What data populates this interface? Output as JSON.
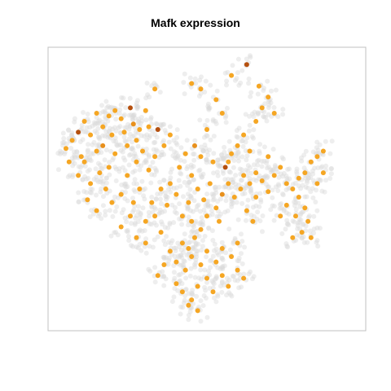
{
  "chart_data": {
    "type": "scatter",
    "title": "Mafk expression",
    "xlabel": "",
    "ylabel": "",
    "xlim": [
      0,
      100
    ],
    "ylim": [
      0,
      100
    ],
    "grid": false,
    "axes_visible": false,
    "colors": {
      "background_cells": "#d9d9d9",
      "low": "#f5a623",
      "mid": "#e8901c",
      "high": "#b5500f",
      "frame": "#c0c0c0"
    },
    "series": [
      {
        "points": [
          {
            "x": 63,
            "y": 96,
            "v": 3
          },
          {
            "x": 45,
            "y": 89,
            "v": 1
          },
          {
            "x": 33,
            "y": 87,
            "v": 1
          },
          {
            "x": 48,
            "y": 87,
            "v": 1
          },
          {
            "x": 58,
            "y": 92,
            "v": 1
          },
          {
            "x": 67,
            "y": 88,
            "v": 1
          },
          {
            "x": 25,
            "y": 80,
            "v": 3
          },
          {
            "x": 18,
            "y": 77,
            "v": 1
          },
          {
            "x": 20,
            "y": 79,
            "v": 1
          },
          {
            "x": 14,
            "y": 78,
            "v": 1
          },
          {
            "x": 10,
            "y": 75,
            "v": 1
          },
          {
            "x": 8,
            "y": 71,
            "v": 3
          },
          {
            "x": 6,
            "y": 68,
            "v": 1
          },
          {
            "x": 4,
            "y": 65,
            "v": 1
          },
          {
            "x": 12,
            "y": 70,
            "v": 1
          },
          {
            "x": 16,
            "y": 73,
            "v": 1
          },
          {
            "x": 22,
            "y": 76,
            "v": 1
          },
          {
            "x": 26,
            "y": 74,
            "v": 2
          },
          {
            "x": 28,
            "y": 72,
            "v": 1
          },
          {
            "x": 31,
            "y": 73,
            "v": 1
          },
          {
            "x": 30,
            "y": 79,
            "v": 1
          },
          {
            "x": 34,
            "y": 72,
            "v": 3
          },
          {
            "x": 24,
            "y": 66,
            "v": 1
          },
          {
            "x": 20,
            "y": 63,
            "v": 1
          },
          {
            "x": 14,
            "y": 64,
            "v": 1
          },
          {
            "x": 10,
            "y": 60,
            "v": 1
          },
          {
            "x": 8,
            "y": 55,
            "v": 1
          },
          {
            "x": 12,
            "y": 52,
            "v": 1
          },
          {
            "x": 15,
            "y": 56,
            "v": 1
          },
          {
            "x": 17,
            "y": 50,
            "v": 1
          },
          {
            "x": 11,
            "y": 46,
            "v": 1
          },
          {
            "x": 14,
            "y": 42,
            "v": 1
          },
          {
            "x": 19,
            "y": 45,
            "v": 1
          },
          {
            "x": 22,
            "y": 48,
            "v": 1
          },
          {
            "x": 24,
            "y": 55,
            "v": 1
          },
          {
            "x": 27,
            "y": 60,
            "v": 1
          },
          {
            "x": 29,
            "y": 64,
            "v": 1
          },
          {
            "x": 31,
            "y": 57,
            "v": 1
          },
          {
            "x": 33,
            "y": 62,
            "v": 1
          },
          {
            "x": 26,
            "y": 45,
            "v": 1
          },
          {
            "x": 28,
            "y": 50,
            "v": 1
          },
          {
            "x": 35,
            "y": 50,
            "v": 1
          },
          {
            "x": 38,
            "y": 52,
            "v": 1
          },
          {
            "x": 40,
            "y": 48,
            "v": 1
          },
          {
            "x": 37,
            "y": 44,
            "v": 1
          },
          {
            "x": 33,
            "y": 40,
            "v": 1
          },
          {
            "x": 30,
            "y": 38,
            "v": 1
          },
          {
            "x": 25,
            "y": 40,
            "v": 1
          },
          {
            "x": 22,
            "y": 36,
            "v": 1
          },
          {
            "x": 41,
            "y": 58,
            "v": 1
          },
          {
            "x": 43,
            "y": 63,
            "v": 1
          },
          {
            "x": 46,
            "y": 66,
            "v": 2
          },
          {
            "x": 48,
            "y": 62,
            "v": 1
          },
          {
            "x": 45,
            "y": 55,
            "v": 1
          },
          {
            "x": 47,
            "y": 50,
            "v": 1
          },
          {
            "x": 49,
            "y": 46,
            "v": 1
          },
          {
            "x": 51,
            "y": 52,
            "v": 1
          },
          {
            "x": 44,
            "y": 45,
            "v": 1
          },
          {
            "x": 42,
            "y": 40,
            "v": 1
          },
          {
            "x": 45,
            "y": 38,
            "v": 1
          },
          {
            "x": 48,
            "y": 35,
            "v": 1
          },
          {
            "x": 50,
            "y": 40,
            "v": 1
          },
          {
            "x": 53,
            "y": 43,
            "v": 1
          },
          {
            "x": 55,
            "y": 48,
            "v": 2
          },
          {
            "x": 54,
            "y": 38,
            "v": 1
          },
          {
            "x": 57,
            "y": 52,
            "v": 1
          },
          {
            "x": 59,
            "y": 47,
            "v": 1
          },
          {
            "x": 61,
            "y": 50,
            "v": 1
          },
          {
            "x": 62,
            "y": 55,
            "v": 1
          },
          {
            "x": 64,
            "y": 52,
            "v": 1
          },
          {
            "x": 66,
            "y": 56,
            "v": 1
          },
          {
            "x": 68,
            "y": 53,
            "v": 1
          },
          {
            "x": 70,
            "y": 49,
            "v": 1
          },
          {
            "x": 72,
            "y": 55,
            "v": 1
          },
          {
            "x": 74,
            "y": 58,
            "v": 1
          },
          {
            "x": 76,
            "y": 52,
            "v": 1
          },
          {
            "x": 78,
            "y": 50,
            "v": 1
          },
          {
            "x": 80,
            "y": 54,
            "v": 1
          },
          {
            "x": 82,
            "y": 56,
            "v": 1
          },
          {
            "x": 84,
            "y": 60,
            "v": 1
          },
          {
            "x": 86,
            "y": 62,
            "v": 1
          },
          {
            "x": 88,
            "y": 64,
            "v": 1
          },
          {
            "x": 80,
            "y": 47,
            "v": 1
          },
          {
            "x": 82,
            "y": 43,
            "v": 1
          },
          {
            "x": 79,
            "y": 40,
            "v": 1
          },
          {
            "x": 83,
            "y": 38,
            "v": 1
          },
          {
            "x": 81,
            "y": 34,
            "v": 1
          },
          {
            "x": 78,
            "y": 32,
            "v": 1
          },
          {
            "x": 84,
            "y": 32,
            "v": 1
          },
          {
            "x": 76,
            "y": 44,
            "v": 1
          },
          {
            "x": 74,
            "y": 40,
            "v": 1
          },
          {
            "x": 60,
            "y": 30,
            "v": 1
          },
          {
            "x": 58,
            "y": 25,
            "v": 1
          },
          {
            "x": 55,
            "y": 28,
            "v": 1
          },
          {
            "x": 53,
            "y": 23,
            "v": 1
          },
          {
            "x": 50,
            "y": 27,
            "v": 1
          },
          {
            "x": 48,
            "y": 22,
            "v": 1
          },
          {
            "x": 45,
            "y": 25,
            "v": 1
          },
          {
            "x": 43,
            "y": 20,
            "v": 1
          },
          {
            "x": 40,
            "y": 23,
            "v": 1
          },
          {
            "x": 38,
            "y": 27,
            "v": 1
          },
          {
            "x": 36,
            "y": 22,
            "v": 1
          },
          {
            "x": 34,
            "y": 18,
            "v": 1
          },
          {
            "x": 40,
            "y": 15,
            "v": 1
          },
          {
            "x": 42,
            "y": 12,
            "v": 1
          },
          {
            "x": 45,
            "y": 9,
            "v": 1
          },
          {
            "x": 47,
            "y": 14,
            "v": 1
          },
          {
            "x": 50,
            "y": 17,
            "v": 1
          },
          {
            "x": 52,
            "y": 12,
            "v": 1
          },
          {
            "x": 55,
            "y": 18,
            "v": 1
          },
          {
            "x": 57,
            "y": 14,
            "v": 1
          },
          {
            "x": 60,
            "y": 20,
            "v": 1
          },
          {
            "x": 62,
            "y": 17,
            "v": 1
          },
          {
            "x": 47,
            "y": 5,
            "v": 1
          },
          {
            "x": 44,
            "y": 7,
            "v": 1
          },
          {
            "x": 30,
            "y": 30,
            "v": 1
          },
          {
            "x": 27,
            "y": 32,
            "v": 1
          },
          {
            "x": 65,
            "y": 38,
            "v": 1
          },
          {
            "x": 63,
            "y": 42,
            "v": 1
          },
          {
            "x": 66,
            "y": 47,
            "v": 1
          },
          {
            "x": 60,
            "y": 66,
            "v": 1
          },
          {
            "x": 62,
            "y": 70,
            "v": 1
          },
          {
            "x": 64,
            "y": 64,
            "v": 1
          },
          {
            "x": 66,
            "y": 75,
            "v": 1
          },
          {
            "x": 68,
            "y": 80,
            "v": 1
          },
          {
            "x": 70,
            "y": 84,
            "v": 1
          },
          {
            "x": 72,
            "y": 78,
            "v": 1
          },
          {
            "x": 55,
            "y": 78,
            "v": 1
          },
          {
            "x": 53,
            "y": 83,
            "v": 1
          },
          {
            "x": 50,
            "y": 72,
            "v": 1
          },
          {
            "x": 38,
            "y": 70,
            "v": 1
          },
          {
            "x": 36,
            "y": 66,
            "v": 1
          },
          {
            "x": 19,
            "y": 70,
            "v": 1
          },
          {
            "x": 9,
            "y": 62,
            "v": 1
          },
          {
            "x": 5,
            "y": 60,
            "v": 1
          },
          {
            "x": 86,
            "y": 52,
            "v": 1
          },
          {
            "x": 88,
            "y": 56,
            "v": 1
          },
          {
            "x": 70,
            "y": 62,
            "v": 1
          },
          {
            "x": 56,
            "y": 58,
            "v": 3
          },
          {
            "x": 57,
            "y": 60,
            "v": 1
          },
          {
            "x": 58,
            "y": 63,
            "v": 1
          },
          {
            "x": 52,
            "y": 60,
            "v": 1
          },
          {
            "x": 42,
            "y": 30,
            "v": 1
          },
          {
            "x": 46,
            "y": 32,
            "v": 1
          },
          {
            "x": 44,
            "y": 28,
            "v": 1
          },
          {
            "x": 35,
            "y": 34,
            "v": 1
          },
          {
            "x": 32,
            "y": 45,
            "v": 1
          },
          {
            "x": 18,
            "y": 58,
            "v": 1
          },
          {
            "x": 16,
            "y": 66,
            "v": 2
          },
          {
            "x": 23,
            "y": 71,
            "v": 1
          },
          {
            "x": 27,
            "y": 68,
            "v": 1
          }
        ]
      }
    ]
  }
}
